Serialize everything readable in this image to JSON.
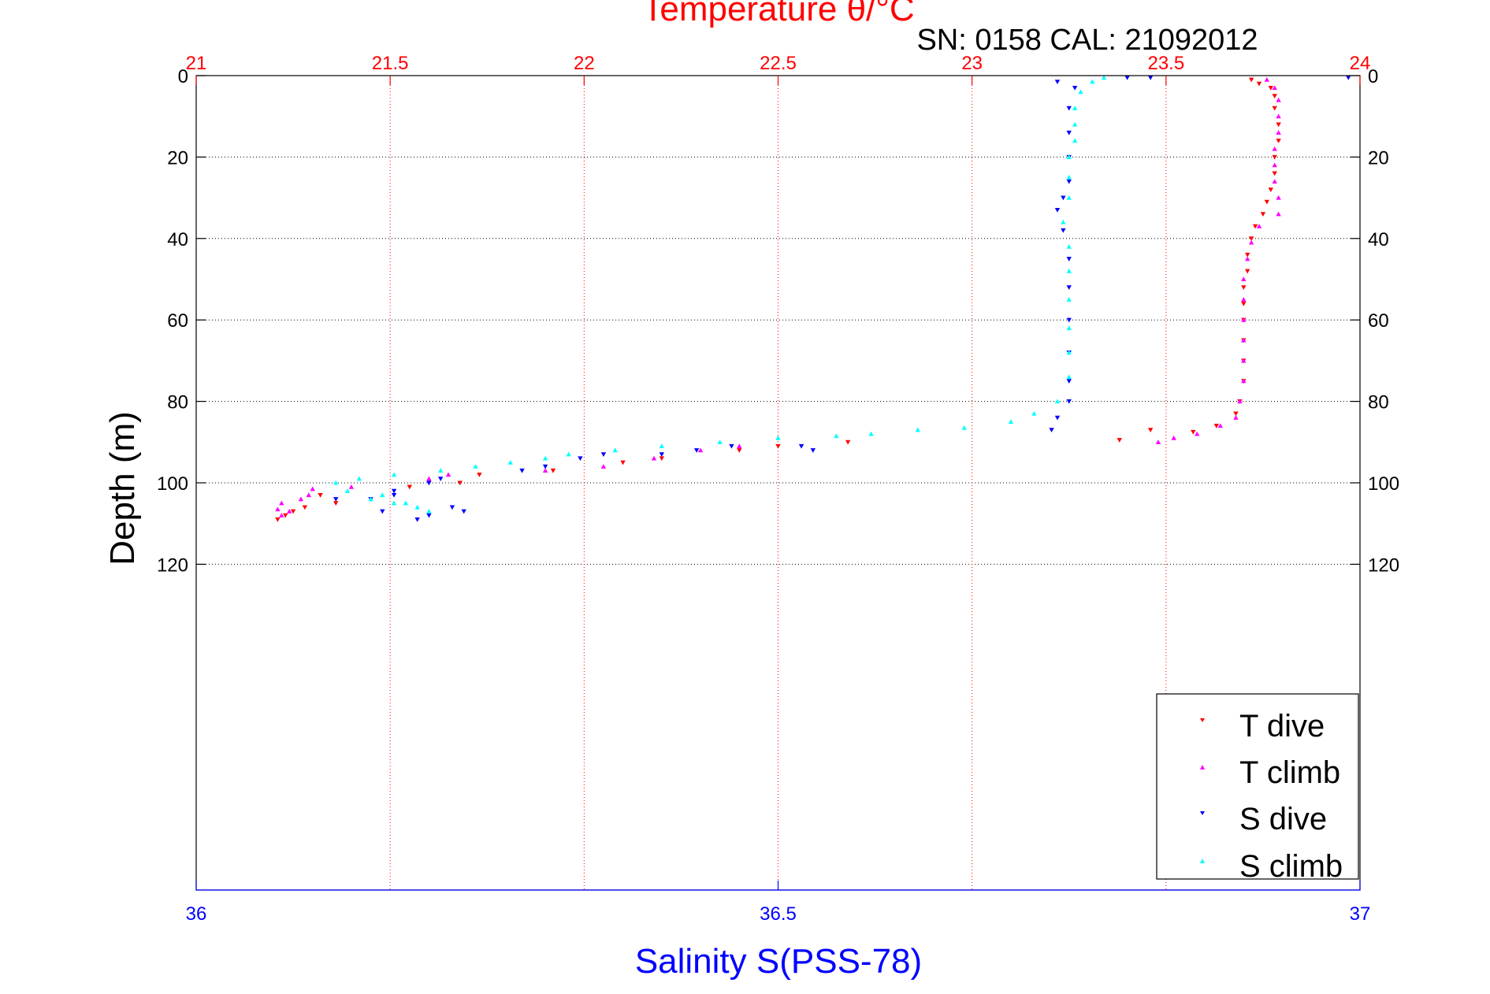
{
  "chart_data": {
    "type": "scatter",
    "title": "Temperature θ/°C",
    "subtitle": "SN: 0158  CAL: 21092012",
    "ylabel": "Depth (m)",
    "xlabel": "Salinity S(PSS-78)",
    "ylim": [
      0,
      200
    ],
    "y_reversed": true,
    "y_ticks": [
      0,
      20,
      40,
      60,
      80,
      100,
      120
    ],
    "y_tick_labels": [
      "0",
      "20",
      "40",
      "60",
      "80",
      "100",
      "120"
    ],
    "x_top": {
      "label": "Temperature θ/°C",
      "lim": [
        21,
        24
      ],
      "ticks": [
        21,
        21.5,
        22,
        22.5,
        23,
        23.5,
        24
      ],
      "tick_labels": [
        "21",
        "21.5",
        "22",
        "22.5",
        "23",
        "23.5",
        "24"
      ]
    },
    "x_bottom": {
      "label": "Salinity S(PSS-78)",
      "lim": [
        36,
        37
      ],
      "ticks": [
        36,
        36.5,
        37
      ],
      "tick_labels": [
        "36",
        "36.5",
        "37"
      ]
    },
    "grid": true,
    "legend_position": "bottom-right",
    "colors": {
      "temperature_axis": "#ff0000",
      "salinity_axis": "#0000ff",
      "grid_x": "#ff0000",
      "grid_y": "#000000",
      "frame": "#000000"
    },
    "series": [
      {
        "name": "T dive",
        "axis": "temperature",
        "marker": "triangle-down",
        "color": "#ff0000",
        "points": [
          [
            23.72,
            1
          ],
          [
            23.74,
            2
          ],
          [
            23.77,
            3
          ],
          [
            23.78,
            5
          ],
          [
            23.78,
            8
          ],
          [
            23.79,
            12
          ],
          [
            23.79,
            16
          ],
          [
            23.78,
            20
          ],
          [
            23.78,
            24
          ],
          [
            23.77,
            28
          ],
          [
            23.76,
            31
          ],
          [
            23.75,
            34
          ],
          [
            23.73,
            37
          ],
          [
            23.72,
            40
          ],
          [
            23.71,
            44
          ],
          [
            23.71,
            48
          ],
          [
            23.7,
            52
          ],
          [
            23.7,
            56
          ],
          [
            23.7,
            60
          ],
          [
            23.7,
            65
          ],
          [
            23.7,
            70
          ],
          [
            23.7,
            75
          ],
          [
            23.69,
            80
          ],
          [
            23.68,
            83
          ],
          [
            23.63,
            86
          ],
          [
            23.57,
            87.5
          ],
          [
            23.46,
            87
          ],
          [
            23.38,
            89.5
          ],
          [
            22.68,
            90
          ],
          [
            22.5,
            91
          ],
          [
            22.4,
            92
          ],
          [
            22.2,
            94
          ],
          [
            22.1,
            95
          ],
          [
            21.92,
            97
          ],
          [
            21.73,
            98
          ],
          [
            21.68,
            100
          ],
          [
            21.55,
            101
          ],
          [
            21.32,
            103
          ],
          [
            21.36,
            105
          ],
          [
            21.28,
            106
          ],
          [
            21.25,
            107
          ],
          [
            21.23,
            108
          ],
          [
            21.21,
            109
          ]
        ]
      },
      {
        "name": "T climb",
        "axis": "temperature",
        "marker": "triangle-up",
        "color": "#ff00ff",
        "points": [
          [
            23.76,
            1
          ],
          [
            23.78,
            3
          ],
          [
            23.79,
            6
          ],
          [
            23.79,
            10
          ],
          [
            23.79,
            14
          ],
          [
            23.78,
            18
          ],
          [
            23.78,
            22
          ],
          [
            23.78,
            26
          ],
          [
            23.79,
            30
          ],
          [
            23.79,
            34
          ],
          [
            23.74,
            37
          ],
          [
            23.72,
            41
          ],
          [
            23.71,
            45
          ],
          [
            23.7,
            50
          ],
          [
            23.7,
            55
          ],
          [
            23.7,
            60
          ],
          [
            23.7,
            65
          ],
          [
            23.7,
            70
          ],
          [
            23.7,
            75
          ],
          [
            23.69,
            80
          ],
          [
            23.68,
            84
          ],
          [
            23.64,
            86
          ],
          [
            23.58,
            88
          ],
          [
            23.52,
            89
          ],
          [
            23.48,
            90
          ],
          [
            22.4,
            91
          ],
          [
            22.3,
            92
          ],
          [
            22.18,
            94
          ],
          [
            22.05,
            96
          ],
          [
            21.9,
            97
          ],
          [
            21.65,
            98
          ],
          [
            21.6,
            99
          ],
          [
            21.4,
            101
          ],
          [
            21.3,
            101.5
          ],
          [
            21.29,
            103
          ],
          [
            21.27,
            104
          ],
          [
            21.22,
            105
          ],
          [
            21.21,
            106.5
          ],
          [
            21.22,
            108
          ],
          [
            21.24,
            107
          ]
        ]
      },
      {
        "name": "S dive",
        "axis": "salinity",
        "marker": "triangle-down",
        "color": "#0000ff",
        "points": [
          [
            36.8,
            0.5
          ],
          [
            36.82,
            0.5
          ],
          [
            36.99,
            0.5
          ],
          [
            36.74,
            1.5
          ],
          [
            36.755,
            3
          ],
          [
            36.75,
            8
          ],
          [
            36.75,
            14
          ],
          [
            36.75,
            20
          ],
          [
            36.75,
            26
          ],
          [
            36.745,
            30
          ],
          [
            36.74,
            33
          ],
          [
            36.745,
            38
          ],
          [
            36.75,
            45
          ],
          [
            36.75,
            52
          ],
          [
            36.75,
            60
          ],
          [
            36.75,
            68
          ],
          [
            36.75,
            75
          ],
          [
            36.75,
            80
          ],
          [
            36.74,
            84
          ],
          [
            36.735,
            87
          ],
          [
            36.52,
            91
          ],
          [
            36.53,
            92
          ],
          [
            36.46,
            91
          ],
          [
            36.43,
            92
          ],
          [
            36.4,
            93
          ],
          [
            36.35,
            93
          ],
          [
            36.33,
            94
          ],
          [
            36.3,
            96
          ],
          [
            36.28,
            97
          ],
          [
            36.21,
            99
          ],
          [
            36.2,
            100
          ],
          [
            36.17,
            102
          ],
          [
            36.17,
            103
          ],
          [
            36.15,
            104
          ],
          [
            36.12,
            104
          ],
          [
            36.22,
            106
          ],
          [
            36.2,
            108
          ],
          [
            36.19,
            109
          ],
          [
            36.16,
            107
          ],
          [
            36.23,
            107
          ]
        ]
      },
      {
        "name": "S climb",
        "axis": "salinity",
        "marker": "triangle-up",
        "color": "#00ffff",
        "points": [
          [
            36.78,
            0.5
          ],
          [
            36.77,
            1.5
          ],
          [
            36.76,
            4
          ],
          [
            36.755,
            8
          ],
          [
            36.755,
            12
          ],
          [
            36.755,
            16
          ],
          [
            36.75,
            20
          ],
          [
            36.75,
            25
          ],
          [
            36.75,
            30
          ],
          [
            36.745,
            36
          ],
          [
            36.75,
            42
          ],
          [
            36.75,
            48
          ],
          [
            36.75,
            55
          ],
          [
            36.75,
            62
          ],
          [
            36.75,
            68
          ],
          [
            36.75,
            74
          ],
          [
            36.74,
            80
          ],
          [
            36.72,
            83
          ],
          [
            36.7,
            85
          ],
          [
            36.66,
            86.5
          ],
          [
            36.62,
            87
          ],
          [
            36.58,
            88
          ],
          [
            36.55,
            88.5
          ],
          [
            36.5,
            89
          ],
          [
            36.45,
            90
          ],
          [
            36.4,
            91
          ],
          [
            36.36,
            92
          ],
          [
            36.32,
            93
          ],
          [
            36.3,
            94
          ],
          [
            36.27,
            95
          ],
          [
            36.24,
            96
          ],
          [
            36.21,
            97
          ],
          [
            36.17,
            98
          ],
          [
            36.14,
            99
          ],
          [
            36.12,
            100
          ],
          [
            36.13,
            102
          ],
          [
            36.15,
            104
          ],
          [
            36.17,
            105
          ],
          [
            36.19,
            106
          ],
          [
            36.2,
            107
          ],
          [
            36.18,
            105
          ],
          [
            36.16,
            103
          ]
        ]
      }
    ]
  }
}
